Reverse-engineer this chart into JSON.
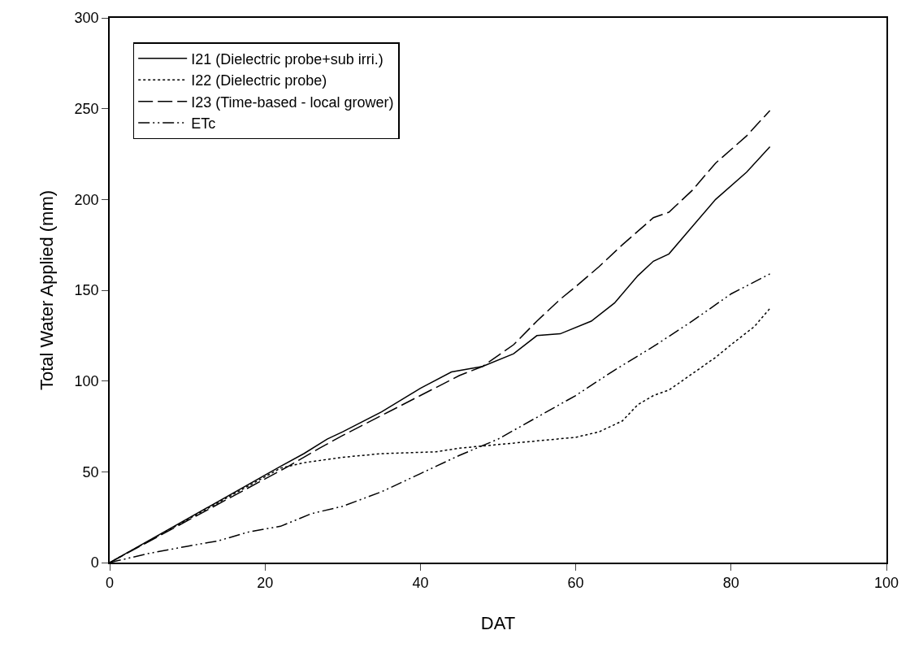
{
  "chart_data": {
    "type": "line",
    "xlabel": "DAT",
    "ylabel": "Total Water Applied (mm)",
    "xlim": [
      0,
      100
    ],
    "xticks": [
      0,
      20,
      40,
      60,
      80,
      100
    ],
    "ylim": [
      0,
      300
    ],
    "yticks": [
      0,
      50,
      100,
      150,
      200,
      250,
      300
    ],
    "legend": "top left",
    "marker": "none",
    "series": [
      {
        "name": "I21 (Dielectric probe+sub irri.)",
        "color": "#000000",
        "line_style": "solid",
        "x": [
          0,
          22,
          25,
          28,
          30,
          35,
          40,
          44,
          48,
          52,
          55,
          58,
          62,
          65,
          68,
          70,
          72,
          75,
          78,
          82,
          85
        ],
        "values": [
          0,
          53,
          60,
          68,
          72,
          83,
          96,
          105,
          108,
          115,
          125,
          126,
          133,
          143,
          158,
          166,
          170,
          185,
          200,
          215,
          229
        ]
      },
      {
        "name": "I22 (Dielectric probe)",
        "color": "#000000",
        "line_style": "dotted",
        "x": [
          0,
          22,
          25,
          30,
          35,
          42,
          45,
          50,
          55,
          60,
          63,
          66,
          68,
          70,
          72,
          75,
          78,
          80,
          83,
          85
        ],
        "values": [
          0,
          52,
          55,
          58,
          60,
          61,
          63,
          65,
          67,
          69,
          72,
          78,
          87,
          92,
          95,
          104,
          113,
          120,
          130,
          140
        ]
      },
      {
        "name": "I23 (Time-based - local grower)",
        "color": "#000000",
        "line_style": "dashed",
        "x": [
          0,
          23,
          27,
          30,
          35,
          40,
          45,
          48,
          52,
          55,
          58,
          60,
          63,
          66,
          70,
          72,
          75,
          78,
          82,
          85
        ],
        "values": [
          0,
          53,
          63,
          70,
          81,
          92,
          103,
          108,
          120,
          133,
          145,
          152,
          163,
          175,
          190,
          193,
          205,
          220,
          235,
          249
        ]
      },
      {
        "name": "ETc",
        "color": "#000000",
        "line_style": "dashdotdot",
        "x": [
          0,
          5,
          10,
          14,
          18,
          22,
          26,
          30,
          35,
          40,
          45,
          50,
          55,
          60,
          65,
          70,
          75,
          80,
          85
        ],
        "values": [
          0,
          5,
          9,
          12,
          17,
          20,
          27,
          31,
          39,
          49,
          59,
          68,
          80,
          92,
          106,
          119,
          133,
          148,
          159
        ]
      }
    ]
  }
}
